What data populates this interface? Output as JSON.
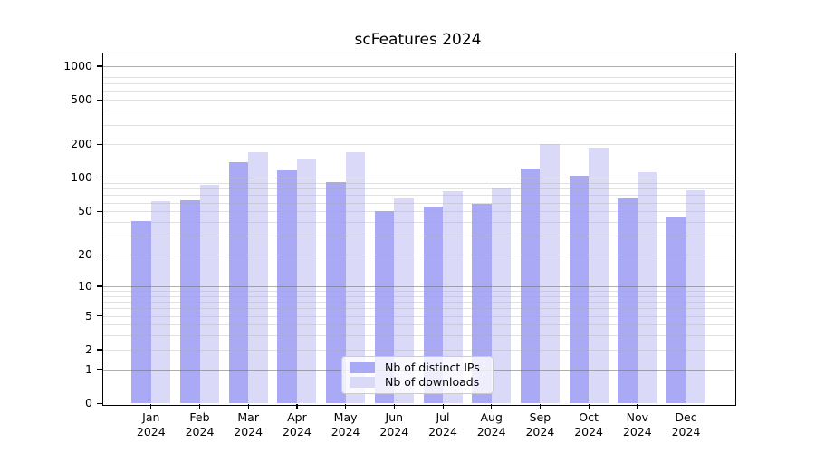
{
  "chart_data": {
    "type": "bar",
    "title": "scFeatures 2024",
    "x_categories": [
      "Jan 2024",
      "Feb 2024",
      "Mar 2024",
      "Apr 2024",
      "May 2024",
      "Jun 2024",
      "Jul 2024",
      "Aug 2024",
      "Sep 2024",
      "Oct 2024",
      "Nov 2024",
      "Dec 2024"
    ],
    "series": [
      {
        "name": "Nb of distinct IPs",
        "color": "#a9a9f5",
        "values": [
          41,
          63,
          138,
          118,
          92,
          50,
          55,
          58,
          122,
          104,
          66,
          44
        ]
      },
      {
        "name": "Nb of downloads",
        "color": "#dadaf8",
        "values": [
          62,
          86,
          170,
          148,
          171,
          65,
          76,
          82,
          200,
          186,
          113,
          77
        ]
      }
    ],
    "y_scale": "log10(1+x)",
    "y_ticks": [
      0,
      1,
      2,
      5,
      10,
      20,
      50,
      100,
      200,
      500,
      1000
    ],
    "y_major_gridlines": [
      1,
      10,
      100,
      1000
    ],
    "ylim": [
      0,
      1300
    ],
    "grid": "horizontal major+minor, drawn over bars",
    "legend_position": "lower center inside plot"
  },
  "colors": {
    "background": "#ffffff",
    "axis": "#000000",
    "bar_distinct_ips": "#a9a9f5",
    "bar_downloads": "#dadaf8",
    "legend_border": "#cccccc"
  }
}
